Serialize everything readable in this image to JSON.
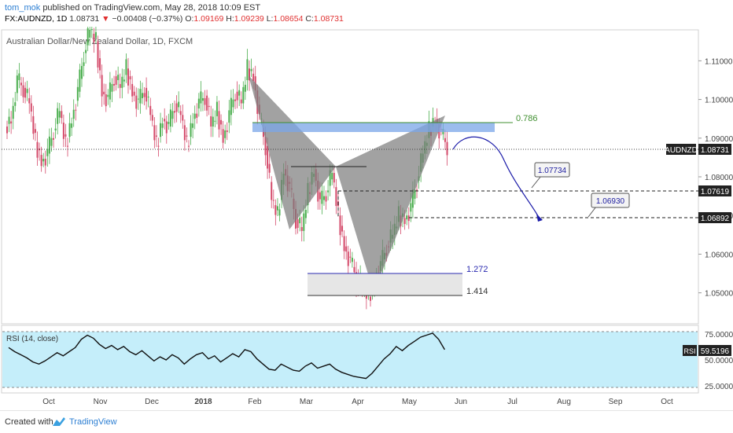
{
  "header": {
    "author": "tom_mok",
    "published_text": "published on TradingView.com, May 28, 2018 10:09 EST",
    "symbol": "FX:AUDNZD, 1D",
    "last": "1.08731",
    "arrow": "▼",
    "change": "−0.00408 (−0.37%)",
    "o_label": "O:",
    "o": "1.09169",
    "h_label": "H:",
    "h": "1.09239",
    "l_label": "L:",
    "l": "1.08654",
    "c_label": "C:",
    "c": "1.08731"
  },
  "chart_title": "Australian Dollar/New Zealand Dollar, 1D, FXCM",
  "colors": {
    "up": "#4caf50",
    "down": "#d44a6a",
    "pattern": "#7a7a7a",
    "zone": "#7aa6e8",
    "rsi_bg": "#c5eefa",
    "forecast": "#1a1aa8",
    "fib_green": "#3f8f2f"
  },
  "chart_data": {
    "type": "candlestick",
    "price_axis": {
      "ticks": [
        "1.11000",
        "1.10000",
        "1.09000",
        "1.08000",
        "1.07000",
        "1.06000",
        "1.05000"
      ],
      "range": [
        1.042,
        1.118
      ]
    },
    "time_axis": {
      "ticks": [
        "Oct",
        "Nov",
        "Dec",
        "2018",
        "Feb",
        "Mar",
        "Apr",
        "May",
        "Jun",
        "Jul",
        "Aug",
        "Sep",
        "Oct"
      ]
    },
    "closes": [
      1.095,
      1.105,
      1.103,
      1.099,
      1.089,
      1.084,
      1.086,
      1.092,
      1.097,
      1.088,
      1.095,
      1.102,
      1.112,
      1.118,
      1.115,
      1.102,
      1.1,
      1.106,
      1.103,
      1.108,
      1.102,
      1.099,
      1.103,
      1.096,
      1.088,
      1.095,
      1.093,
      1.099,
      1.096,
      1.088,
      1.095,
      1.099,
      1.101,
      1.093,
      1.097,
      1.09,
      1.096,
      1.102,
      1.099,
      1.108,
      1.106,
      1.095,
      1.088,
      1.074,
      1.07,
      1.082,
      1.077,
      1.069,
      1.066,
      1.076,
      1.082,
      1.073,
      1.076,
      1.081,
      1.07,
      1.062,
      1.058,
      1.054,
      1.051,
      1.049,
      1.053,
      1.057,
      1.062,
      1.065,
      1.07,
      1.069,
      1.072,
      1.079,
      1.086,
      1.092,
      1.095,
      1.091,
      1.088
    ],
    "last_price": {
      "label": "AUDNZD",
      "value": "1.08731"
    },
    "levels": [
      {
        "label": "1.07619"
      },
      {
        "label": "1.06892"
      }
    ],
    "fib_labels": [
      {
        "text": "0.786"
      },
      {
        "text": "1.272"
      },
      {
        "text": "1.414"
      }
    ],
    "targets": [
      {
        "label": "1.07734"
      },
      {
        "label": "1.06930"
      }
    ],
    "rsi": {
      "title": "RSI (14, close)",
      "label": "RSI",
      "value": "59.5196",
      "ticks": [
        "75.0000",
        "50.0000",
        "25.0000"
      ],
      "range": [
        18,
        82
      ],
      "values": [
        62,
        58,
        55,
        52,
        48,
        46,
        49,
        53,
        57,
        54,
        58,
        62,
        70,
        74,
        71,
        65,
        61,
        64,
        60,
        63,
        58,
        55,
        59,
        54,
        49,
        53,
        50,
        55,
        52,
        46,
        51,
        55,
        57,
        51,
        54,
        48,
        52,
        56,
        53,
        60,
        58,
        51,
        46,
        41,
        40,
        46,
        43,
        40,
        39,
        44,
        47,
        42,
        44,
        46,
        41,
        38,
        36,
        34,
        33,
        32,
        37,
        44,
        51,
        56,
        63,
        59,
        64,
        68,
        72,
        74,
        76,
        70,
        60
      ]
    }
  }
}
